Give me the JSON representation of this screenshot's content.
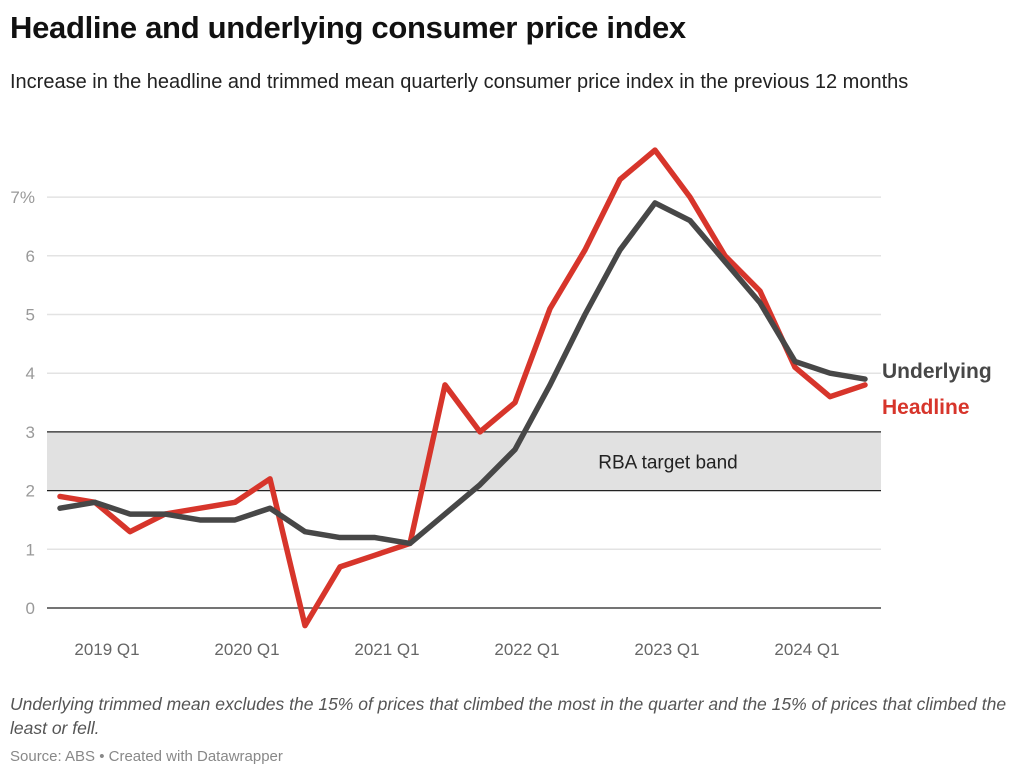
{
  "title": "Headline and underlying consumer price index",
  "subtitle": "Increase in the headline and trimmed mean quarterly consumer price index in the previous 12 months",
  "note": "Underlying trimmed mean excludes the 15% of prices that climbed the most in the quarter and the 15% of prices that climbed the least or fell.",
  "source": "Source: ABS • Created with Datawrapper",
  "chart_data": {
    "type": "line",
    "x": [
      "2018 Q3",
      "2018 Q4",
      "2019 Q1",
      "2019 Q2",
      "2019 Q3",
      "2019 Q4",
      "2020 Q1",
      "2020 Q2",
      "2020 Q3",
      "2020 Q4",
      "2021 Q1",
      "2021 Q2",
      "2021 Q3",
      "2021 Q4",
      "2022 Q1",
      "2022 Q2",
      "2022 Q3",
      "2022 Q4",
      "2023 Q1",
      "2023 Q2",
      "2023 Q3",
      "2023 Q4",
      "2024 Q1",
      "2024 Q2"
    ],
    "x_ticks": [
      "2019 Q1",
      "2020 Q1",
      "2021 Q1",
      "2022 Q1",
      "2023 Q1",
      "2024 Q1"
    ],
    "y_ticks": [
      0,
      1,
      2,
      3,
      4,
      5,
      6,
      7
    ],
    "y_tick_labels": [
      "0",
      "1",
      "2",
      "3",
      "4",
      "5",
      "6",
      "7%"
    ],
    "ylim": [
      -0.4,
      7.9
    ],
    "grid": true,
    "series": [
      {
        "name": "Headline",
        "color": "#d7352b",
        "values": [
          1.9,
          1.8,
          1.3,
          1.6,
          1.7,
          1.8,
          2.2,
          -0.3,
          0.7,
          0.9,
          1.1,
          3.8,
          3.0,
          3.5,
          5.1,
          6.1,
          7.3,
          7.8,
          7.0,
          6.0,
          5.4,
          4.1,
          3.6,
          3.8
        ]
      },
      {
        "name": "Underlying",
        "color": "#474747",
        "values": [
          1.7,
          1.8,
          1.6,
          1.6,
          1.5,
          1.5,
          1.7,
          1.3,
          1.2,
          1.2,
          1.1,
          1.6,
          2.1,
          2.7,
          3.8,
          5.0,
          6.1,
          6.9,
          6.6,
          5.9,
          5.2,
          4.2,
          4.0,
          3.9
        ]
      }
    ],
    "band": {
      "label": "RBA target band",
      "range": [
        2,
        3
      ],
      "color": "#e1e1e1"
    }
  }
}
